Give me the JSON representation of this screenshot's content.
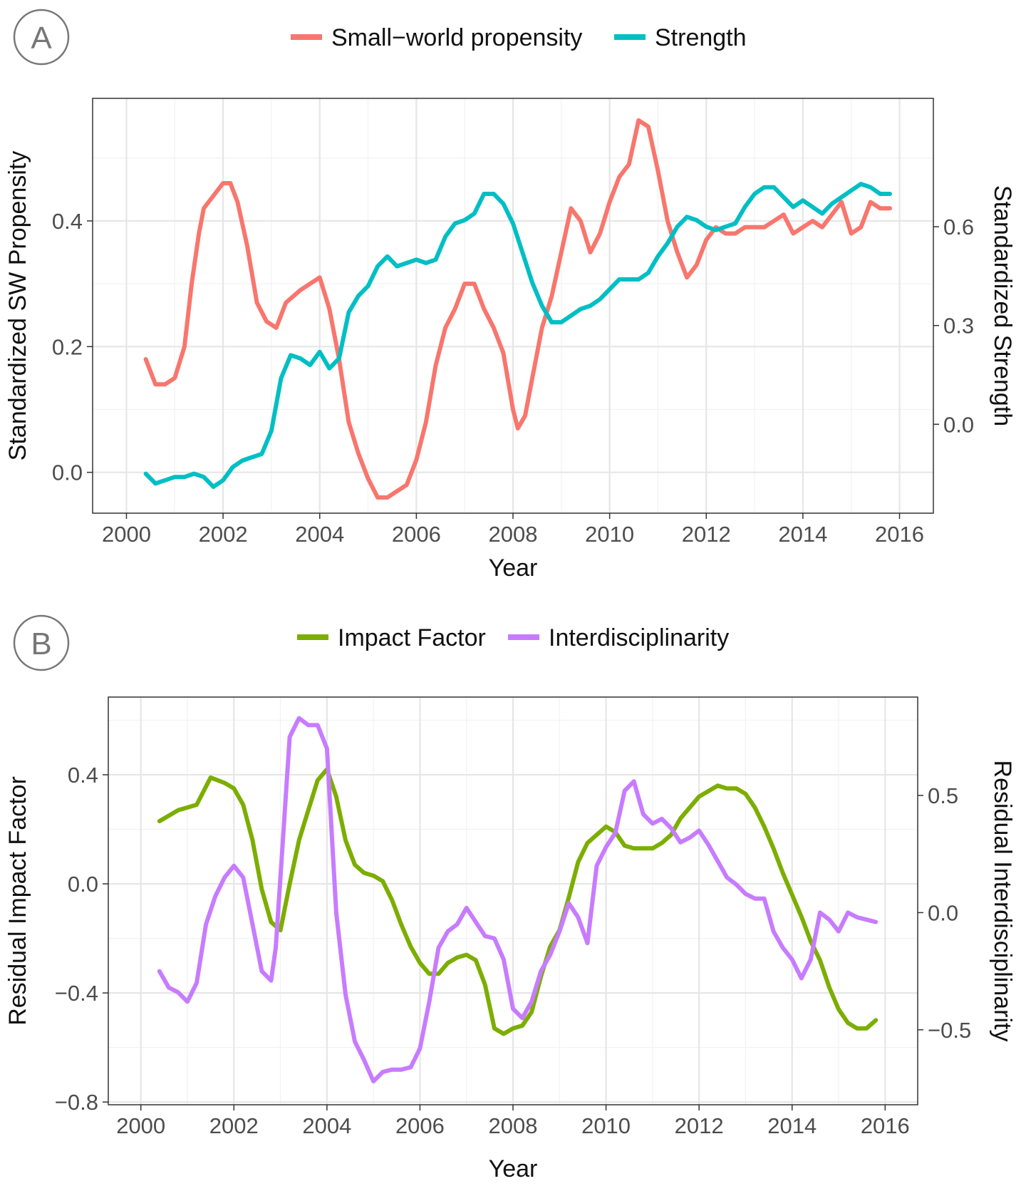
{
  "panels": [
    {
      "label": "A",
      "legend_entries": [
        "Small−world propensity",
        "Strength"
      ]
    },
    {
      "label": "B",
      "legend_entries": [
        "Impact Factor",
        "Interdisciplinarity"
      ]
    }
  ],
  "chart_data": [
    {
      "type": "line",
      "panel": "A",
      "xlabel": "Year",
      "ylabel": "Standardized SW Propensity",
      "y2label": "Standardized Strength",
      "xlim": [
        1999.3,
        2016.7
      ],
      "ylim": [
        -0.065,
        0.595
      ],
      "y2lim": [
        -0.27,
        0.99
      ],
      "xticks": [
        2000,
        2002,
        2004,
        2006,
        2008,
        2010,
        2012,
        2014,
        2016
      ],
      "yticks": [
        0.0,
        0.2,
        0.4
      ],
      "ytick_labels": [
        "0.0",
        "0.2",
        "0.4"
      ],
      "y2ticks": [
        0.0,
        0.3,
        0.6
      ],
      "y2tick_labels": [
        "0.0",
        "0.3",
        "0.6"
      ],
      "grid": true,
      "legend_position": "top",
      "series": [
        {
          "name": "Small−world propensity",
          "axis": "left",
          "color": "#F8766D",
          "x": [
            2000.4,
            2000.6,
            2000.8,
            2001.0,
            2001.2,
            2001.35,
            2001.5,
            2001.6,
            2001.8,
            2002.0,
            2002.15,
            2002.3,
            2002.5,
            2002.7,
            2002.9,
            2003.1,
            2003.3,
            2003.6,
            2003.8,
            2004.0,
            2004.2,
            2004.4,
            2004.6,
            2004.8,
            2005.0,
            2005.2,
            2005.4,
            2005.6,
            2005.8,
            2006.0,
            2006.2,
            2006.4,
            2006.6,
            2006.8,
            2007.0,
            2007.2,
            2007.4,
            2007.6,
            2007.8,
            2008.0,
            2008.1,
            2008.25,
            2008.4,
            2008.6,
            2008.8,
            2009.0,
            2009.2,
            2009.4,
            2009.6,
            2009.8,
            2010.0,
            2010.2,
            2010.4,
            2010.6,
            2010.8,
            2011.0,
            2011.2,
            2011.4,
            2011.6,
            2011.8,
            2012.0,
            2012.2,
            2012.4,
            2012.6,
            2012.8,
            2013.0,
            2013.2,
            2013.4,
            2013.6,
            2013.8,
            2014.0,
            2014.2,
            2014.4,
            2014.6,
            2014.8,
            2015.0,
            2015.2,
            2015.4,
            2015.6,
            2015.8
          ],
          "values": [
            0.18,
            0.14,
            0.14,
            0.15,
            0.2,
            0.3,
            0.38,
            0.42,
            0.44,
            0.46,
            0.46,
            0.43,
            0.36,
            0.27,
            0.24,
            0.23,
            0.27,
            0.29,
            0.3,
            0.31,
            0.26,
            0.18,
            0.08,
            0.03,
            -0.01,
            -0.04,
            -0.04,
            -0.03,
            -0.02,
            0.02,
            0.08,
            0.17,
            0.23,
            0.26,
            0.3,
            0.3,
            0.26,
            0.23,
            0.19,
            0.1,
            0.07,
            0.09,
            0.15,
            0.23,
            0.28,
            0.35,
            0.42,
            0.4,
            0.35,
            0.38,
            0.43,
            0.47,
            0.49,
            0.56,
            0.55,
            0.48,
            0.4,
            0.35,
            0.31,
            0.33,
            0.37,
            0.39,
            0.38,
            0.38,
            0.39,
            0.39,
            0.39,
            0.4,
            0.41,
            0.38,
            0.39,
            0.4,
            0.39,
            0.41,
            0.43,
            0.38,
            0.39,
            0.43,
            0.42,
            0.42
          ]
        },
        {
          "name": "Strength",
          "axis": "right",
          "color": "#00BFC4",
          "x": [
            2000.4,
            2000.6,
            2000.8,
            2001.0,
            2001.2,
            2001.4,
            2001.6,
            2001.8,
            2002.0,
            2002.2,
            2002.4,
            2002.6,
            2002.8,
            2003.0,
            2003.2,
            2003.4,
            2003.6,
            2003.8,
            2004.0,
            2004.2,
            2004.4,
            2004.6,
            2004.8,
            2005.0,
            2005.2,
            2005.4,
            2005.6,
            2005.8,
            2006.0,
            2006.2,
            2006.4,
            2006.6,
            2006.8,
            2007.0,
            2007.2,
            2007.4,
            2007.6,
            2007.8,
            2008.0,
            2008.2,
            2008.4,
            2008.6,
            2008.8,
            2009.0,
            2009.2,
            2009.4,
            2009.6,
            2009.8,
            2010.0,
            2010.2,
            2010.4,
            2010.6,
            2010.8,
            2011.0,
            2011.2,
            2011.4,
            2011.6,
            2011.8,
            2012.0,
            2012.2,
            2012.4,
            2012.6,
            2012.8,
            2013.0,
            2013.2,
            2013.4,
            2013.6,
            2013.8,
            2014.0,
            2014.2,
            2014.4,
            2014.6,
            2014.8,
            2015.0,
            2015.2,
            2015.4,
            2015.6,
            2015.8
          ],
          "values": [
            -0.15,
            -0.18,
            -0.17,
            -0.16,
            -0.16,
            -0.15,
            -0.16,
            -0.19,
            -0.17,
            -0.13,
            -0.11,
            -0.1,
            -0.09,
            -0.02,
            0.14,
            0.21,
            0.2,
            0.18,
            0.22,
            0.17,
            0.2,
            0.34,
            0.39,
            0.42,
            0.48,
            0.51,
            0.48,
            0.49,
            0.5,
            0.49,
            0.5,
            0.57,
            0.61,
            0.62,
            0.64,
            0.7,
            0.7,
            0.67,
            0.61,
            0.52,
            0.43,
            0.36,
            0.31,
            0.31,
            0.33,
            0.35,
            0.36,
            0.38,
            0.41,
            0.44,
            0.44,
            0.44,
            0.46,
            0.51,
            0.55,
            0.6,
            0.63,
            0.62,
            0.6,
            0.59,
            0.6,
            0.61,
            0.66,
            0.7,
            0.72,
            0.72,
            0.69,
            0.66,
            0.68,
            0.66,
            0.64,
            0.67,
            0.69,
            0.71,
            0.73,
            0.72,
            0.7,
            0.7
          ]
        }
      ]
    },
    {
      "type": "line",
      "panel": "B",
      "xlabel": "Year",
      "ylabel": "Residual Impact Factor",
      "y2label": "Residual Interdisciplinarity",
      "xlim": [
        1999.3,
        2016.7
      ],
      "ylim": [
        -0.81,
        0.685
      ],
      "y2lim": [
        -0.82,
        0.92
      ],
      "xticks": [
        2000,
        2002,
        2004,
        2006,
        2008,
        2010,
        2012,
        2014,
        2016
      ],
      "yticks": [
        -0.8,
        -0.4,
        0.0,
        0.4
      ],
      "ytick_labels": [
        "−0.8",
        "−0.4",
        "0.0",
        "0.4"
      ],
      "y2ticks": [
        -0.5,
        0.0,
        0.5
      ],
      "y2tick_labels": [
        "−0.5",
        "0.0",
        "0.5"
      ],
      "grid": true,
      "legend_position": "top",
      "series": [
        {
          "name": "Impact Factor",
          "axis": "left",
          "color": "#7CAE00",
          "x": [
            2000.4,
            2000.8,
            2001.2,
            2001.5,
            2001.8,
            2002.0,
            2002.2,
            2002.4,
            2002.6,
            2002.8,
            2003.0,
            2003.2,
            2003.4,
            2003.6,
            2003.8,
            2004.0,
            2004.2,
            2004.4,
            2004.6,
            2004.8,
            2005.0,
            2005.2,
            2005.4,
            2005.6,
            2005.8,
            2006.0,
            2006.2,
            2006.4,
            2006.6,
            2006.8,
            2007.0,
            2007.2,
            2007.4,
            2007.6,
            2007.8,
            2008.0,
            2008.2,
            2008.4,
            2008.6,
            2008.8,
            2009.0,
            2009.2,
            2009.4,
            2009.6,
            2009.8,
            2010.0,
            2010.2,
            2010.4,
            2010.6,
            2010.8,
            2011.0,
            2011.2,
            2011.4,
            2011.6,
            2011.8,
            2012.0,
            2012.2,
            2012.4,
            2012.6,
            2012.8,
            2013.0,
            2013.2,
            2013.4,
            2013.6,
            2013.8,
            2014.0,
            2014.2,
            2014.4,
            2014.6,
            2014.8,
            2015.0,
            2015.2,
            2015.4,
            2015.6,
            2015.8
          ],
          "values": [
            0.23,
            0.27,
            0.29,
            0.39,
            0.37,
            0.35,
            0.29,
            0.16,
            -0.02,
            -0.14,
            -0.17,
            0.0,
            0.16,
            0.27,
            0.38,
            0.42,
            0.32,
            0.16,
            0.07,
            0.04,
            0.03,
            0.01,
            -0.06,
            -0.15,
            -0.23,
            -0.29,
            -0.33,
            -0.33,
            -0.29,
            -0.27,
            -0.26,
            -0.28,
            -0.37,
            -0.53,
            -0.55,
            -0.53,
            -0.52,
            -0.47,
            -0.34,
            -0.23,
            -0.17,
            -0.05,
            0.08,
            0.15,
            0.18,
            0.21,
            0.19,
            0.14,
            0.13,
            0.13,
            0.13,
            0.15,
            0.18,
            0.24,
            0.28,
            0.32,
            0.34,
            0.36,
            0.35,
            0.35,
            0.33,
            0.28,
            0.21,
            0.13,
            0.04,
            -0.04,
            -0.12,
            -0.21,
            -0.28,
            -0.38,
            -0.46,
            -0.51,
            -0.53,
            -0.53,
            -0.5
          ]
        },
        {
          "name": "Interdisciplinarity",
          "axis": "right",
          "color": "#C77CFF",
          "x": [
            2000.4,
            2000.6,
            2000.8,
            2001.0,
            2001.2,
            2001.4,
            2001.6,
            2001.8,
            2002.0,
            2002.2,
            2002.4,
            2002.6,
            2002.8,
            2002.9,
            2003.0,
            2003.2,
            2003.4,
            2003.6,
            2003.8,
            2004.0,
            2004.2,
            2004.4,
            2004.6,
            2004.8,
            2005.0,
            2005.2,
            2005.4,
            2005.6,
            2005.8,
            2006.0,
            2006.2,
            2006.4,
            2006.6,
            2006.8,
            2007.0,
            2007.2,
            2007.4,
            2007.6,
            2007.8,
            2008.0,
            2008.2,
            2008.4,
            2008.6,
            2008.8,
            2009.0,
            2009.2,
            2009.4,
            2009.6,
            2009.8,
            2010.0,
            2010.2,
            2010.4,
            2010.6,
            2010.8,
            2011.0,
            2011.2,
            2011.4,
            2011.6,
            2011.8,
            2012.0,
            2012.2,
            2012.4,
            2012.6,
            2012.8,
            2013.0,
            2013.2,
            2013.4,
            2013.6,
            2013.8,
            2014.0,
            2014.2,
            2014.4,
            2014.6,
            2014.8,
            2015.0,
            2015.2,
            2015.4,
            2015.6,
            2015.8
          ],
          "values": [
            -0.25,
            -0.32,
            -0.34,
            -0.38,
            -0.3,
            -0.05,
            0.07,
            0.15,
            0.2,
            0.15,
            -0.05,
            -0.25,
            -0.29,
            -0.15,
            0.15,
            0.75,
            0.83,
            0.8,
            0.8,
            0.7,
            0.0,
            -0.35,
            -0.55,
            -0.63,
            -0.72,
            -0.68,
            -0.67,
            -0.67,
            -0.66,
            -0.58,
            -0.38,
            -0.15,
            -0.08,
            -0.05,
            0.02,
            -0.04,
            -0.1,
            -0.11,
            -0.2,
            -0.41,
            -0.45,
            -0.38,
            -0.25,
            -0.18,
            -0.08,
            0.04,
            -0.02,
            -0.13,
            0.2,
            0.28,
            0.34,
            0.52,
            0.56,
            0.42,
            0.38,
            0.4,
            0.36,
            0.3,
            0.32,
            0.35,
            0.29,
            0.22,
            0.15,
            0.12,
            0.08,
            0.06,
            0.06,
            -0.08,
            -0.15,
            -0.2,
            -0.28,
            -0.2,
            0.0,
            -0.03,
            -0.08,
            0.0,
            -0.02,
            -0.03,
            -0.04
          ]
        }
      ]
    }
  ]
}
